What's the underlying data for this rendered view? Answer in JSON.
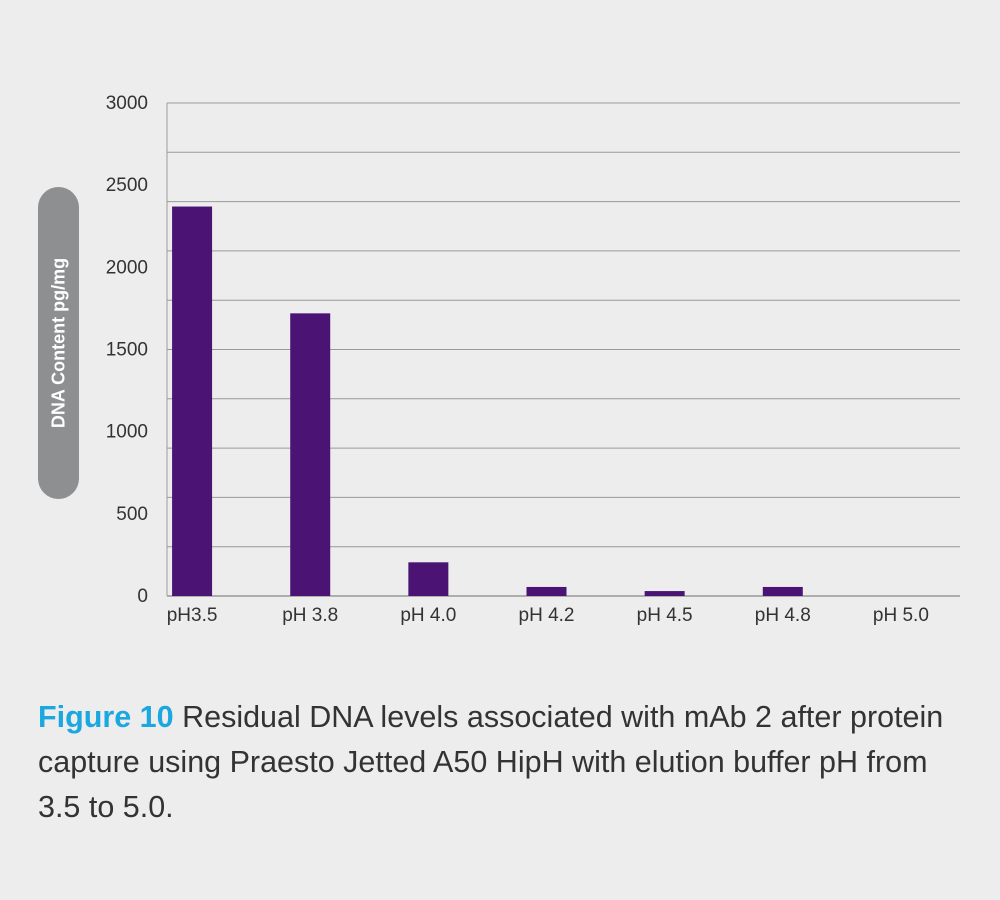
{
  "chart_data": {
    "type": "bar",
    "categories": [
      "pH3.5",
      "pH 3.8",
      "pH 4.0",
      "pH 4.2",
      "pH 4.5",
      "pH 4.8",
      "pH 5.0"
    ],
    "values": [
      2370,
      1720,
      205,
      55,
      30,
      55,
      0
    ],
    "xlabel": "",
    "ylabel": "DNA Content pg/mg",
    "ylim": [
      0,
      3000
    ],
    "yticks": [
      "0",
      "500",
      "1000",
      "1500",
      "2000",
      "2500",
      "3000"
    ],
    "ytick_values": [
      0,
      500,
      1000,
      1500,
      2000,
      2500,
      3000
    ],
    "grid_values": [
      0,
      300,
      600,
      900,
      1200,
      1500,
      1800,
      2100,
      2400,
      2700,
      3000
    ],
    "grid": true,
    "bar_color": "#4b1474"
  },
  "caption": {
    "figure_label": "Figure 10",
    "text": " Residual DNA levels associated with mAb 2 after protein capture using Praesto Jetted A50 HipH with elution buffer pH from 3.5 to 5.0."
  }
}
